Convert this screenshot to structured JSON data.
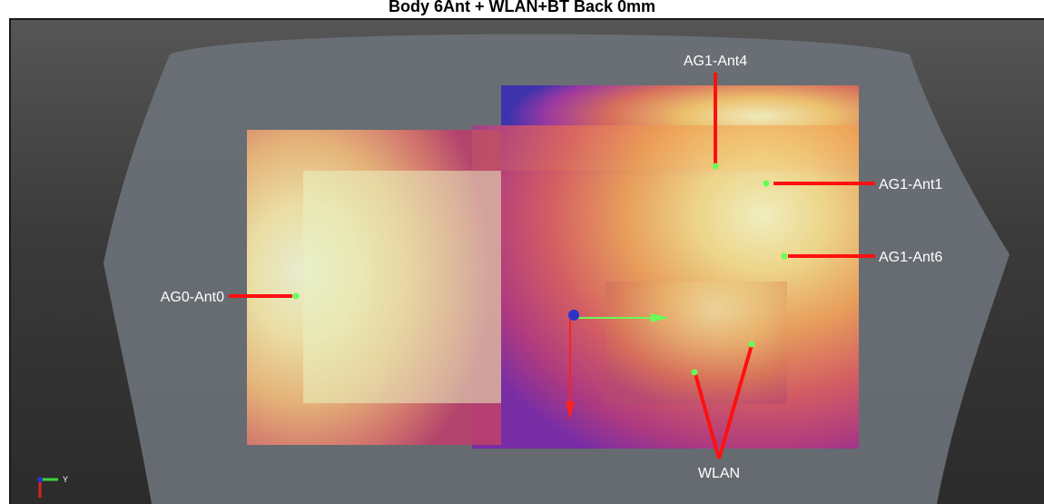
{
  "window": {
    "title": "Body 6Ant + WLAN+BT Back 0mm"
  },
  "antennas": [
    {
      "id": "ag1-ant4",
      "label": "AG1-Ant4"
    },
    {
      "id": "ag1-ant1",
      "label": "AG1-Ant1"
    },
    {
      "id": "ag1-ant6",
      "label": "AG1-Ant6"
    },
    {
      "id": "ag0-ant0",
      "label": "AG0-Ant0"
    },
    {
      "id": "wlan",
      "label": "WLAN"
    }
  ],
  "axes_triad": {
    "y_label": "Y"
  },
  "colors": {
    "background_top": "#565656",
    "background_bottom": "#2b2b2b",
    "body_shell": "#6b7278",
    "leader_line": "#ff1010",
    "probe_dot": "#66ff55",
    "heat_hot": "#f7f2b0",
    "heat_warm": "#f0b24a",
    "heat_mid": "#d0585a",
    "heat_cold": "#6a2bb0"
  }
}
